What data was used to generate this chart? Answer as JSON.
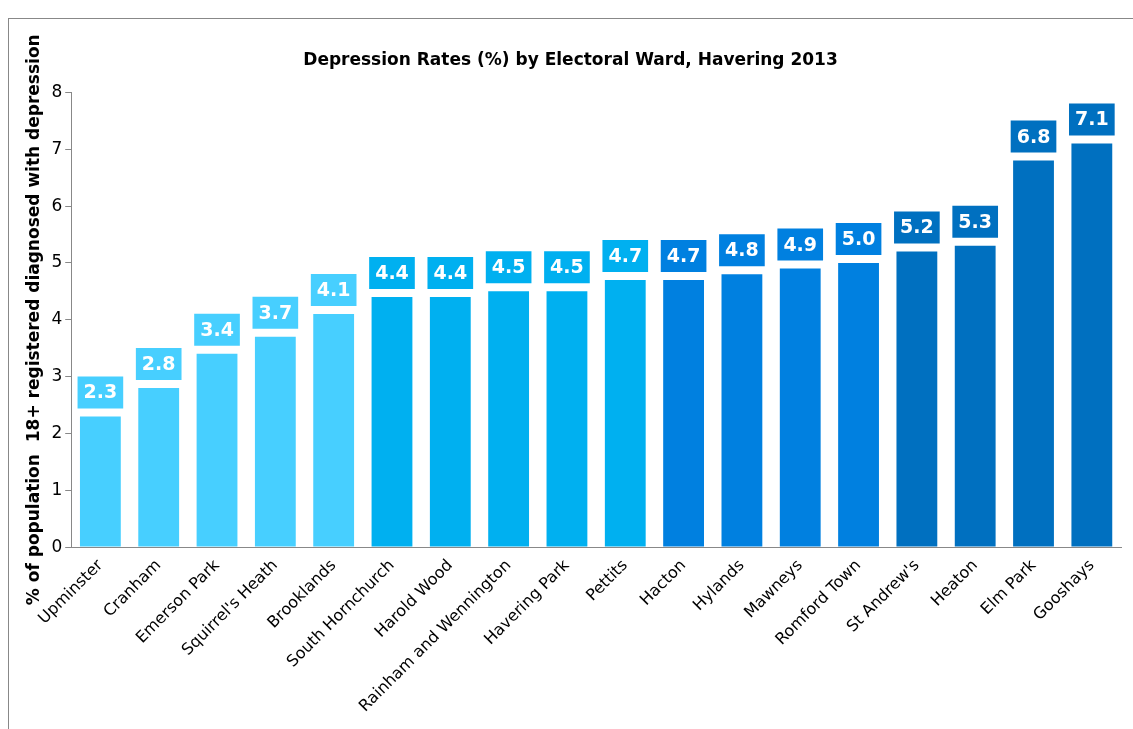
{
  "chart_data": {
    "type": "bar",
    "title": "Depression Rates (%) by Electoral Ward, Havering 2013",
    "ylabel": "% of population  18+ registered diagnosed with depression",
    "categories": [
      "Upminster",
      "Cranham",
      "Emerson Park",
      "Squirrel's Heath",
      "Brooklands",
      "South Hornchurch",
      "Harold Wood",
      "Rainham and Wennington",
      "Havering Park",
      "Pettits",
      "Hacton",
      "Hylands",
      "Mawneys",
      "Romford Town",
      "St Andrew's",
      "Heaton",
      "Elm Park",
      "Gooshays"
    ],
    "values": [
      2.3,
      2.8,
      3.4,
      3.7,
      4.1,
      4.4,
      4.4,
      4.5,
      4.5,
      4.7,
      4.7,
      4.8,
      4.9,
      5.0,
      5.2,
      5.3,
      6.8,
      7.1
    ],
    "value_labels": [
      "2.3",
      "2.8",
      "3.4",
      "3.7",
      "4.1",
      "4.4",
      "4.4",
      "4.5",
      "4.5",
      "4.7",
      "4.7",
      "4.8",
      "4.9",
      "5.0",
      "5.2",
      "5.3",
      "6.8",
      "7.1"
    ],
    "colors": [
      "#47cfff",
      "#47cfff",
      "#47cfff",
      "#47cfff",
      "#47cfff",
      "#00b0f0",
      "#00b0f0",
      "#00b0f0",
      "#00b0f0",
      "#00b0f0",
      "#0080e0",
      "#0080e0",
      "#0080e0",
      "#0080e0",
      "#0070c0",
      "#0070c0",
      "#0070c0",
      "#0070c0"
    ],
    "ylim": [
      0,
      8
    ],
    "yticks": [
      0,
      1,
      2,
      3,
      4,
      5,
      6,
      7,
      8
    ],
    "grid": false,
    "legend": false
  }
}
